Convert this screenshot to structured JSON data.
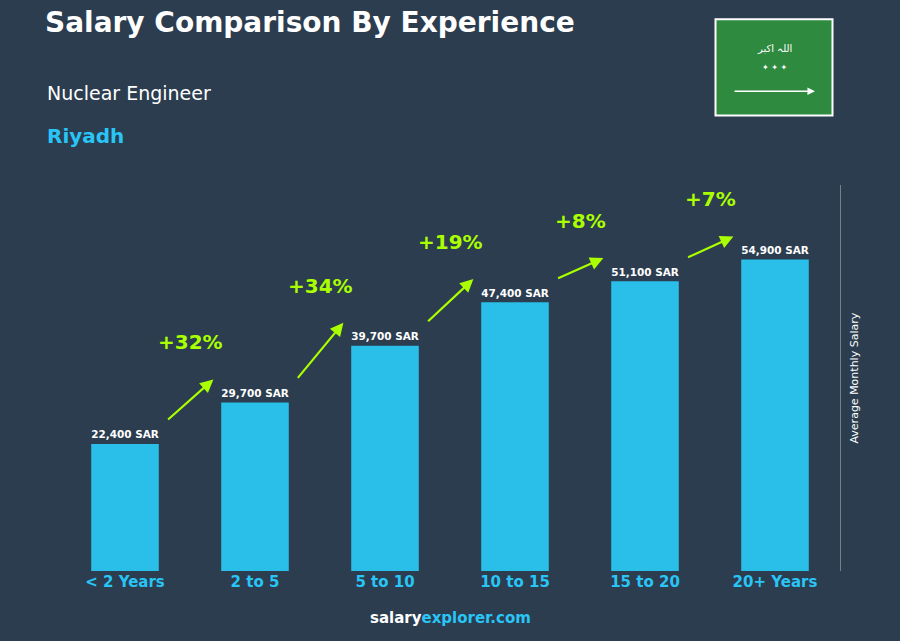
{
  "chart_data": {
    "type": "bar",
    "title": "Salary Comparison By Experience",
    "subtitle": [
      "Nuclear Engineer",
      "Riyadh"
    ],
    "categories": [
      "< 2 Years",
      "2 to 5",
      "5 to 10",
      "10 to 15",
      "15 to 20",
      "20+ Years"
    ],
    "values": [
      22400,
      29700,
      39700,
      47400,
      51100,
      54900
    ],
    "value_labels": [
      "22,400 SAR",
      "29,700 SAR",
      "39,700 SAR",
      "47,400 SAR",
      "51,100 SAR",
      "54,900 SAR"
    ],
    "data_labels": true,
    "color": "#29bfe8",
    "ylabel": "Average Monthly Salary",
    "ylim": [
      0,
      68000
    ],
    "tick_labels": "x",
    "grid": false,
    "annotations": [
      "+32%",
      "+34%",
      "+19%",
      "+8%",
      "+7%"
    ],
    "footer": [
      "salary",
      "explorer.com"
    ],
    "flag": [
      "اللہ اکبر",
      "✦ ✦ ✦"
    ]
  }
}
